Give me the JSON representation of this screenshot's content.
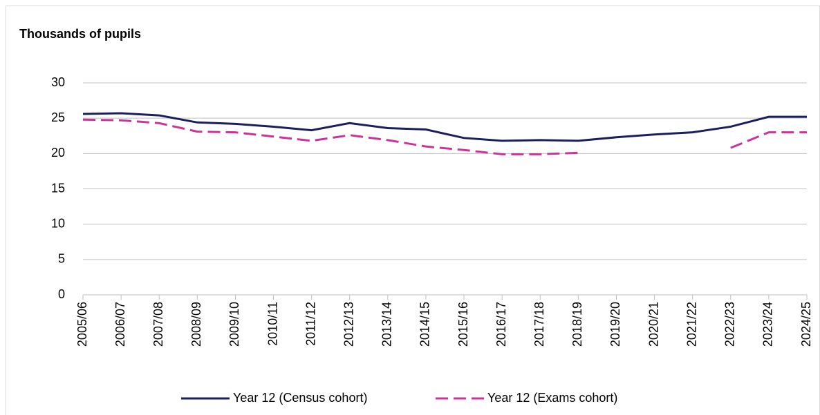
{
  "chart_data": {
    "type": "line",
    "y_axis_label": "Thousands of pupils",
    "categories": [
      "2005/06",
      "2006/07",
      "2007/08",
      "2008/09",
      "2009/10",
      "2010/11",
      "2011/12",
      "2012/13",
      "2013/14",
      "2014/15",
      "2015/16",
      "2016/17",
      "2017/18",
      "2018/19",
      "2019/20",
      "2020/21",
      "2021/22",
      "2022/23",
      "2023/24",
      "2024/25"
    ],
    "series": [
      {
        "name": "Year 12 (Census cohort)",
        "color": "#1b1f5e",
        "dashed": false,
        "values": [
          25.6,
          25.7,
          25.4,
          24.4,
          24.2,
          23.8,
          23.3,
          24.3,
          23.6,
          23.4,
          22.2,
          21.8,
          21.9,
          21.8,
          22.3,
          22.7,
          23.0,
          23.8,
          25.2,
          25.2
        ]
      },
      {
        "name": "Year 12 (Exams cohort)",
        "color": "#cc3399",
        "dashed": true,
        "values": [
          24.8,
          24.7,
          24.3,
          23.1,
          23.0,
          22.4,
          21.8,
          22.6,
          21.9,
          21.0,
          20.5,
          19.9,
          19.9,
          20.1,
          null,
          null,
          null,
          20.8,
          23.0,
          23.0
        ]
      }
    ],
    "ylim": [
      0,
      30
    ],
    "yticks": [
      0,
      5,
      10,
      15,
      20,
      25,
      30
    ],
    "grid": true,
    "legend": "bottom"
  }
}
